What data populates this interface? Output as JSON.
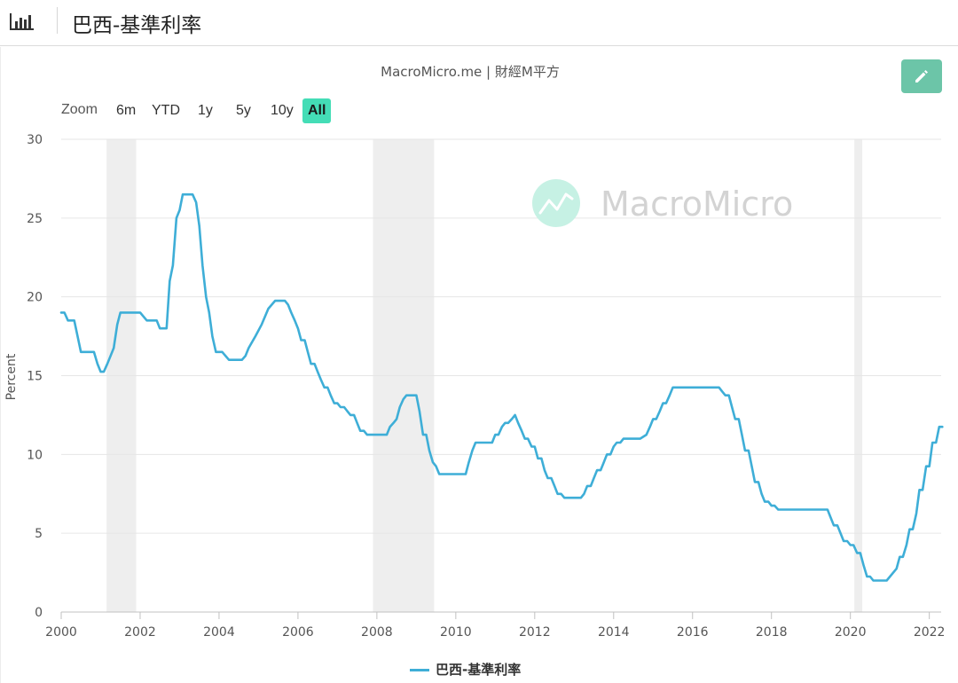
{
  "header": {
    "title": "巴西-基準利率",
    "icon": "bar-chart-icon"
  },
  "source": "MacroMicro.me | 財經M平方",
  "watermark": "MacroMicro",
  "zoom": {
    "label": "Zoom",
    "buttons": [
      "6m",
      "YTD",
      "1y",
      "5y",
      "10y",
      "All"
    ],
    "active": "All"
  },
  "edit_icon": "pencil-icon",
  "colors": {
    "series": "#3eaed7",
    "accent": "#44ddb6",
    "recession": "#eeeeee",
    "edit": "#6cc5a8"
  },
  "chart_data": {
    "type": "line",
    "title": "",
    "xlabel": "",
    "ylabel": "Percent",
    "ylim": [
      0,
      30
    ],
    "xlim": [
      2000.0,
      2022.3
    ],
    "yticks": [
      "0",
      "5",
      "10",
      "15",
      "20",
      "25",
      "30"
    ],
    "xticks": [
      "2000",
      "2002",
      "2004",
      "2006",
      "2008",
      "2010",
      "2012",
      "2014",
      "2016",
      "2018",
      "2020",
      "2022"
    ],
    "grid": true,
    "legend_position": "bottom",
    "recessions": [
      [
        2001.15,
        2001.9
      ],
      [
        2007.9,
        2009.45
      ],
      [
        2020.1,
        2020.3
      ]
    ],
    "series": [
      {
        "name": "巴西-基準利率",
        "points": [
          [
            2000.0,
            19.0
          ],
          [
            2000.08,
            19.0
          ],
          [
            2000.17,
            18.5
          ],
          [
            2000.33,
            18.5
          ],
          [
            2000.5,
            16.5
          ],
          [
            2000.83,
            16.5
          ],
          [
            2000.92,
            15.75
          ],
          [
            2001.0,
            15.25
          ],
          [
            2001.08,
            15.25
          ],
          [
            2001.17,
            15.75
          ],
          [
            2001.25,
            16.25
          ],
          [
            2001.33,
            16.75
          ],
          [
            2001.42,
            18.25
          ],
          [
            2001.5,
            19.0
          ],
          [
            2002.0,
            19.0
          ],
          [
            2002.17,
            18.5
          ],
          [
            2002.42,
            18.5
          ],
          [
            2002.5,
            18.0
          ],
          [
            2002.67,
            18.0
          ],
          [
            2002.75,
            21.0
          ],
          [
            2002.83,
            22.0
          ],
          [
            2002.92,
            25.0
          ],
          [
            2003.0,
            25.5
          ],
          [
            2003.08,
            26.5
          ],
          [
            2003.33,
            26.5
          ],
          [
            2003.42,
            26.0
          ],
          [
            2003.5,
            24.5
          ],
          [
            2003.58,
            22.0
          ],
          [
            2003.67,
            20.0
          ],
          [
            2003.75,
            19.0
          ],
          [
            2003.83,
            17.5
          ],
          [
            2003.92,
            16.5
          ],
          [
            2004.08,
            16.5
          ],
          [
            2004.25,
            16.0
          ],
          [
            2004.58,
            16.0
          ],
          [
            2004.67,
            16.25
          ],
          [
            2004.75,
            16.75
          ],
          [
            2004.92,
            17.5
          ],
          [
            2005.08,
            18.25
          ],
          [
            2005.25,
            19.25
          ],
          [
            2005.42,
            19.75
          ],
          [
            2005.67,
            19.75
          ],
          [
            2005.75,
            19.5
          ],
          [
            2005.83,
            19.0
          ],
          [
            2005.92,
            18.5
          ],
          [
            2006.0,
            18.0
          ],
          [
            2006.08,
            17.25
          ],
          [
            2006.17,
            17.25
          ],
          [
            2006.25,
            16.5
          ],
          [
            2006.33,
            15.75
          ],
          [
            2006.42,
            15.75
          ],
          [
            2006.5,
            15.25
          ],
          [
            2006.58,
            14.75
          ],
          [
            2006.67,
            14.25
          ],
          [
            2006.75,
            14.25
          ],
          [
            2006.83,
            13.75
          ],
          [
            2006.92,
            13.25
          ],
          [
            2007.0,
            13.25
          ],
          [
            2007.08,
            13.0
          ],
          [
            2007.17,
            13.0
          ],
          [
            2007.25,
            12.75
          ],
          [
            2007.33,
            12.5
          ],
          [
            2007.42,
            12.5
          ],
          [
            2007.5,
            12.0
          ],
          [
            2007.58,
            11.5
          ],
          [
            2007.67,
            11.5
          ],
          [
            2007.75,
            11.25
          ],
          [
            2008.25,
            11.25
          ],
          [
            2008.33,
            11.75
          ],
          [
            2008.42,
            12.0
          ],
          [
            2008.5,
            12.25
          ],
          [
            2008.58,
            13.0
          ],
          [
            2008.67,
            13.5
          ],
          [
            2008.75,
            13.75
          ],
          [
            2009.0,
            13.75
          ],
          [
            2009.08,
            12.75
          ],
          [
            2009.17,
            11.25
          ],
          [
            2009.25,
            11.25
          ],
          [
            2009.33,
            10.25
          ],
          [
            2009.42,
            9.5
          ],
          [
            2009.5,
            9.25
          ],
          [
            2009.58,
            8.75
          ],
          [
            2010.25,
            8.75
          ],
          [
            2010.33,
            9.5
          ],
          [
            2010.42,
            10.25
          ],
          [
            2010.5,
            10.75
          ],
          [
            2010.92,
            10.75
          ],
          [
            2011.0,
            11.25
          ],
          [
            2011.08,
            11.25
          ],
          [
            2011.17,
            11.75
          ],
          [
            2011.25,
            12.0
          ],
          [
            2011.33,
            12.0
          ],
          [
            2011.42,
            12.25
          ],
          [
            2011.5,
            12.5
          ],
          [
            2011.58,
            12.0
          ],
          [
            2011.67,
            11.5
          ],
          [
            2011.75,
            11.0
          ],
          [
            2011.83,
            11.0
          ],
          [
            2011.92,
            10.5
          ],
          [
            2012.0,
            10.5
          ],
          [
            2012.08,
            9.75
          ],
          [
            2012.17,
            9.75
          ],
          [
            2012.25,
            9.0
          ],
          [
            2012.33,
            8.5
          ],
          [
            2012.42,
            8.5
          ],
          [
            2012.5,
            8.0
          ],
          [
            2012.58,
            7.5
          ],
          [
            2012.67,
            7.5
          ],
          [
            2012.75,
            7.25
          ],
          [
            2013.17,
            7.25
          ],
          [
            2013.25,
            7.5
          ],
          [
            2013.33,
            8.0
          ],
          [
            2013.42,
            8.0
          ],
          [
            2013.5,
            8.5
          ],
          [
            2013.58,
            9.0
          ],
          [
            2013.67,
            9.0
          ],
          [
            2013.75,
            9.5
          ],
          [
            2013.83,
            10.0
          ],
          [
            2013.92,
            10.0
          ],
          [
            2014.0,
            10.5
          ],
          [
            2014.08,
            10.75
          ],
          [
            2014.17,
            10.75
          ],
          [
            2014.25,
            11.0
          ],
          [
            2014.67,
            11.0
          ],
          [
            2014.83,
            11.25
          ],
          [
            2014.92,
            11.75
          ],
          [
            2015.0,
            12.25
          ],
          [
            2015.08,
            12.25
          ],
          [
            2015.17,
            12.75
          ],
          [
            2015.25,
            13.25
          ],
          [
            2015.33,
            13.25
          ],
          [
            2015.42,
            13.75
          ],
          [
            2015.5,
            14.25
          ],
          [
            2016.67,
            14.25
          ],
          [
            2016.75,
            14.0
          ],
          [
            2016.83,
            13.75
          ],
          [
            2016.92,
            13.75
          ],
          [
            2017.0,
            13.0
          ],
          [
            2017.08,
            12.25
          ],
          [
            2017.17,
            12.25
          ],
          [
            2017.25,
            11.25
          ],
          [
            2017.33,
            10.25
          ],
          [
            2017.42,
            10.25
          ],
          [
            2017.5,
            9.25
          ],
          [
            2017.58,
            8.25
          ],
          [
            2017.67,
            8.25
          ],
          [
            2017.75,
            7.5
          ],
          [
            2017.83,
            7.0
          ],
          [
            2017.92,
            7.0
          ],
          [
            2018.0,
            6.75
          ],
          [
            2018.08,
            6.75
          ],
          [
            2018.17,
            6.5
          ],
          [
            2019.42,
            6.5
          ],
          [
            2019.5,
            6.0
          ],
          [
            2019.58,
            5.5
          ],
          [
            2019.67,
            5.5
          ],
          [
            2019.75,
            5.0
          ],
          [
            2019.83,
            4.5
          ],
          [
            2019.92,
            4.5
          ],
          [
            2020.0,
            4.25
          ],
          [
            2020.08,
            4.25
          ],
          [
            2020.17,
            3.75
          ],
          [
            2020.25,
            3.75
          ],
          [
            2020.33,
            3.0
          ],
          [
            2020.42,
            2.25
          ],
          [
            2020.5,
            2.25
          ],
          [
            2020.58,
            2.0
          ],
          [
            2020.92,
            2.0
          ],
          [
            2021.17,
            2.75
          ],
          [
            2021.25,
            3.5
          ],
          [
            2021.33,
            3.5
          ],
          [
            2021.42,
            4.25
          ],
          [
            2021.5,
            5.25
          ],
          [
            2021.58,
            5.25
          ],
          [
            2021.67,
            6.25
          ],
          [
            2021.75,
            7.75
          ],
          [
            2021.83,
            7.75
          ],
          [
            2021.92,
            9.25
          ],
          [
            2022.0,
            9.25
          ],
          [
            2022.08,
            10.75
          ],
          [
            2022.17,
            10.75
          ],
          [
            2022.25,
            11.75
          ],
          [
            2022.33,
            11.75
          ]
        ]
      }
    ]
  }
}
